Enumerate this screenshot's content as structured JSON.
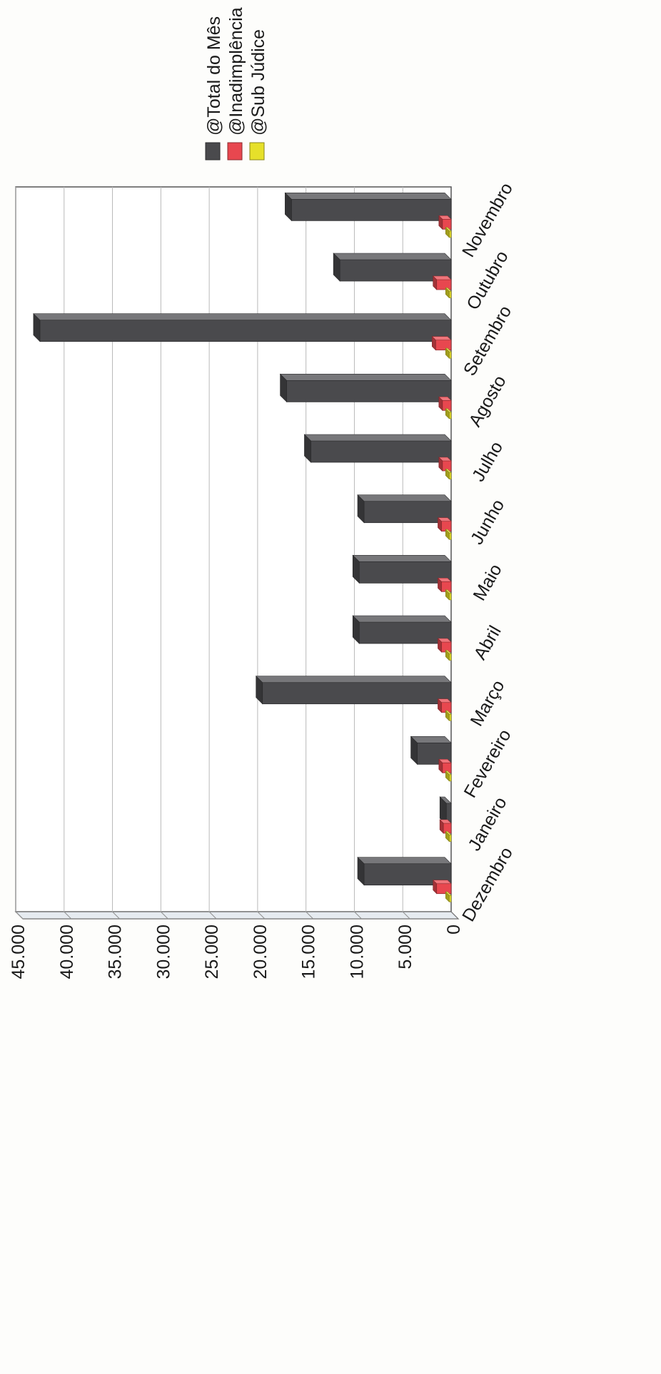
{
  "chart_data": {
    "type": "bar",
    "orientation": "rotated-3d-bar",
    "categories": [
      "Dezembro",
      "Janeiro",
      "Fevereiro",
      "Março",
      "Abril",
      "Maio",
      "Junho",
      "Julho",
      "Agosto",
      "Setembro",
      "Outubro",
      "Novembro"
    ],
    "series": [
      {
        "name": "@Total do Mês",
        "color": "#4a4a4d",
        "values": [
          9000,
          500,
          3500,
          19500,
          9500,
          9500,
          9000,
          14500,
          17000,
          42500,
          11500,
          16500
        ]
      },
      {
        "name": "@Inadimplência",
        "color": "#e8474f",
        "values": [
          1500,
          800,
          900,
          1000,
          1000,
          1000,
          1000,
          900,
          900,
          1600,
          1500,
          900
        ]
      },
      {
        "name": "@Sub Júdice",
        "color": "#e6e02a",
        "values": [
          200,
          200,
          200,
          200,
          200,
          200,
          200,
          200,
          200,
          200,
          200,
          200
        ]
      }
    ],
    "tick_labels": [
      "0",
      "5.000",
      "10.000",
      "15.000",
      "20.000",
      "25.000",
      "30.000",
      "35.000",
      "40.000",
      "45.000"
    ],
    "ylim": [
      0,
      45000
    ],
    "grid": true,
    "legend_position": "top-right"
  }
}
